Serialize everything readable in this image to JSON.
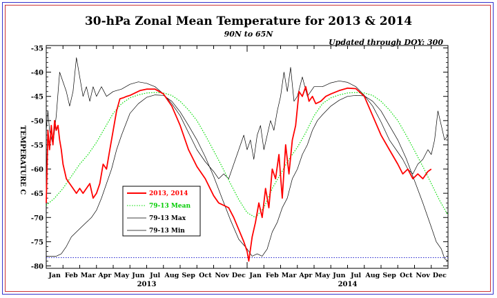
{
  "chart_data": {
    "type": "line",
    "title": "30-hPa Zonal Mean Temperature for 2013 & 2014",
    "subtitle": "90N to 65N",
    "annotation": "Updated through DOY: 300",
    "ylabel": "TEMPERATURE C",
    "ylim": [
      -80.5,
      -34.5
    ],
    "yticks": [
      -35,
      -40,
      -45,
      -50,
      -55,
      -60,
      -65,
      -70,
      -75,
      -80
    ],
    "months": [
      "Jan",
      "Feb",
      "Mar",
      "Apr",
      "May",
      "Jun",
      "Jul",
      "Aug",
      "Sep",
      "Oct",
      "Nov",
      "Dec",
      "Jan",
      "Feb",
      "Mar",
      "Apr",
      "May",
      "Jun",
      "Jul",
      "Aug",
      "Sep",
      "Oct",
      "Nov",
      "Dec"
    ],
    "years": [
      "2013",
      "2014"
    ],
    "xlim": [
      0,
      24
    ],
    "reference_line": -78.3,
    "legend": [
      {
        "name": "2013, 2014",
        "color": "#ff0000"
      },
      {
        "name": "79-13 Mean",
        "color": "#00dd00"
      },
      {
        "name": "79-13 Max",
        "color": "#000000"
      },
      {
        "name": "79-13 Min",
        "color": "#000000"
      }
    ],
    "series": [
      {
        "key": "max",
        "color": "#000000",
        "x": [
          0,
          0.1,
          0.2,
          0.4,
          0.6,
          0.8,
          1.0,
          1.2,
          1.4,
          1.6,
          1.8,
          2.0,
          2.2,
          2.4,
          2.6,
          2.8,
          3.0,
          3.3,
          3.6,
          4.0,
          4.5,
          5.0,
          5.5,
          6.0,
          6.5,
          7.0,
          7.5,
          8.0,
          8.5,
          9.0,
          9.5,
          10.0,
          10.3,
          10.6,
          10.9,
          11.2,
          11.5,
          11.8,
          12.0,
          12.2,
          12.4,
          12.6,
          12.8,
          13.0,
          13.2,
          13.4,
          13.6,
          13.8,
          14.0,
          14.2,
          14.4,
          14.6,
          14.8,
          15.0,
          15.3,
          15.6,
          16.0,
          16.5,
          17.0,
          17.5,
          18.0,
          18.5,
          19.0,
          19.5,
          20.0,
          20.5,
          21.0,
          21.3,
          21.6,
          21.9,
          22.2,
          22.5,
          22.8,
          23.0,
          23.2,
          23.4,
          23.6,
          23.8,
          24.0
        ],
        "y": [
          -52,
          -48,
          -52,
          -55,
          -49,
          -40,
          -42,
          -44,
          -47,
          -44,
          -37,
          -41,
          -45,
          -43,
          -46,
          -43,
          -45,
          -43,
          -45,
          -44,
          -43.5,
          -42.5,
          -42,
          -42.3,
          -43,
          -44.5,
          -46.5,
          -49,
          -52.5,
          -56,
          -58.5,
          -60.5,
          -62,
          -61,
          -62,
          -59,
          -56,
          -53,
          -56,
          -54,
          -58,
          -53,
          -51,
          -56,
          -53,
          -50,
          -52,
          -48,
          -45,
          -40,
          -44,
          -39,
          -46,
          -45,
          -41,
          -45,
          -43,
          -43,
          -42.2,
          -41.8,
          -42.1,
          -43,
          -44.8,
          -47,
          -50.3,
          -54,
          -56.5,
          -58,
          -60,
          -61,
          -59,
          -58,
          -56,
          -57,
          -54,
          -48,
          -51,
          -54,
          -53
        ]
      },
      {
        "key": "min",
        "color": "#000000",
        "x": [
          0,
          0.3,
          0.6,
          0.9,
          1.2,
          1.5,
          1.8,
          2.1,
          2.4,
          2.7,
          3.0,
          3.3,
          3.6,
          3.9,
          4.2,
          4.5,
          5.0,
          5.5,
          6.0,
          6.5,
          7.0,
          7.5,
          8.0,
          8.5,
          9.0,
          9.5,
          10.0,
          10.5,
          11.0,
          11.5,
          12.0,
          12.3,
          12.6,
          12.9,
          13.2,
          13.5,
          13.8,
          14.1,
          14.4,
          14.7,
          15.0,
          15.3,
          15.6,
          15.9,
          16.2,
          16.5,
          17.0,
          17.5,
          18.0,
          18.5,
          19.0,
          19.5,
          20.0,
          20.5,
          21.0,
          21.5,
          22.0,
          22.5,
          23.0,
          23.3,
          23.6,
          23.8,
          24.0
        ],
        "y": [
          -78,
          -78,
          -78,
          -77.5,
          -76,
          -74,
          -73,
          -72,
          -71,
          -70,
          -68.5,
          -66,
          -63,
          -60,
          -56,
          -53,
          -48.5,
          -46.5,
          -45.2,
          -44.7,
          -44.8,
          -46,
          -48.2,
          -51,
          -54,
          -57.5,
          -61.5,
          -66,
          -70.5,
          -74.5,
          -76.5,
          -78,
          -77.5,
          -78,
          -76.5,
          -73,
          -71,
          -68,
          -66,
          -62,
          -60,
          -57,
          -55,
          -52,
          -50,
          -48.8,
          -47,
          -45.8,
          -45,
          -44.8,
          -44.9,
          -46,
          -48,
          -51,
          -54,
          -57.8,
          -62.4,
          -67,
          -72,
          -75,
          -76.5,
          -78.5,
          -79
        ]
      },
      {
        "key": "mean",
        "color": "#00dd00",
        "x": [
          0,
          0.5,
          1.0,
          1.5,
          2.0,
          2.5,
          3.0,
          3.5,
          4.0,
          4.5,
          5.0,
          5.5,
          6.0,
          6.5,
          7.0,
          7.5,
          8.0,
          8.5,
          9.0,
          9.5,
          10.0,
          10.5,
          11.0,
          11.5,
          12.0,
          12.5,
          13.0,
          13.5,
          14.0,
          14.5,
          15.0,
          15.5,
          16.0,
          16.5,
          17.0,
          17.5,
          18.0,
          18.5,
          19.0,
          19.5,
          20.0,
          20.5,
          21.0,
          21.5,
          22.0,
          22.5,
          23.0,
          23.5,
          24.0
        ],
        "y": [
          -67.5,
          -66,
          -64,
          -61.5,
          -59,
          -57,
          -54.5,
          -51.5,
          -48.5,
          -46.5,
          -45.3,
          -44.7,
          -44.3,
          -44.2,
          -44.3,
          -44.8,
          -46,
          -47.8,
          -50,
          -53,
          -56.2,
          -59.5,
          -63,
          -66.3,
          -69,
          -70,
          -68,
          -64,
          -61,
          -58,
          -55.5,
          -52.5,
          -49,
          -46.5,
          -45.3,
          -44.7,
          -44.3,
          -44.2,
          -44.3,
          -44.8,
          -46,
          -47.8,
          -50,
          -53,
          -56.2,
          -59.5,
          -63,
          -66.5,
          -69.5
        ]
      },
      {
        "key": "obs",
        "color": "#ff0000",
        "x": [
          0,
          0.1,
          0.2,
          0.3,
          0.4,
          0.5,
          0.6,
          0.7,
          0.8,
          0.9,
          1.0,
          1.2,
          1.4,
          1.6,
          1.8,
          2.0,
          2.2,
          2.4,
          2.6,
          2.8,
          3.0,
          3.2,
          3.4,
          3.6,
          3.8,
          4.0,
          4.2,
          4.4,
          4.6,
          4.8,
          5.0,
          5.3,
          5.6,
          6.0,
          6.5,
          7.0,
          7.5,
          8.0,
          8.5,
          9.0,
          9.5,
          10.0,
          10.3,
          10.6,
          10.9,
          11.2,
          11.5,
          11.8,
          12.0,
          12.1,
          12.3,
          12.5,
          12.7,
          12.9,
          13.1,
          13.3,
          13.5,
          13.7,
          13.9,
          14.1,
          14.3,
          14.5,
          14.7,
          14.9,
          15.1,
          15.3,
          15.5,
          15.7,
          15.9,
          16.1,
          16.4,
          16.7,
          17.0,
          17.5,
          18.0,
          18.5,
          19.0,
          19.5,
          20.0,
          20.5,
          21.0,
          21.3,
          21.6,
          21.9,
          22.2,
          22.5,
          22.8,
          23.0
        ],
        "y": [
          -67,
          -52,
          -56,
          -51,
          -55,
          -50,
          -52,
          -51,
          -54,
          -56,
          -59,
          -62,
          -63,
          -64,
          -65,
          -64,
          -65,
          -64,
          -63,
          -66,
          -65,
          -63,
          -59,
          -60,
          -56,
          -52,
          -48,
          -45.5,
          -45.3,
          -45,
          -44.8,
          -44.3,
          -43.8,
          -43.5,
          -43.5,
          -44.5,
          -47,
          -51,
          -56,
          -59.5,
          -62,
          -65.5,
          -67,
          -67.5,
          -68,
          -70,
          -72.5,
          -75,
          -77,
          -79,
          -74,
          -71,
          -67,
          -70,
          -64,
          -68,
          -60,
          -62,
          -57,
          -66,
          -55,
          -61,
          -54,
          -51,
          -44,
          -45,
          -43,
          -46,
          -45,
          -46.5,
          -46,
          -45,
          -44.5,
          -43.8,
          -43.3,
          -43.4,
          -45,
          -49,
          -53,
          -56,
          -59,
          -61,
          -60,
          -62,
          -61,
          -62,
          -60.5,
          -60
        ]
      }
    ]
  }
}
